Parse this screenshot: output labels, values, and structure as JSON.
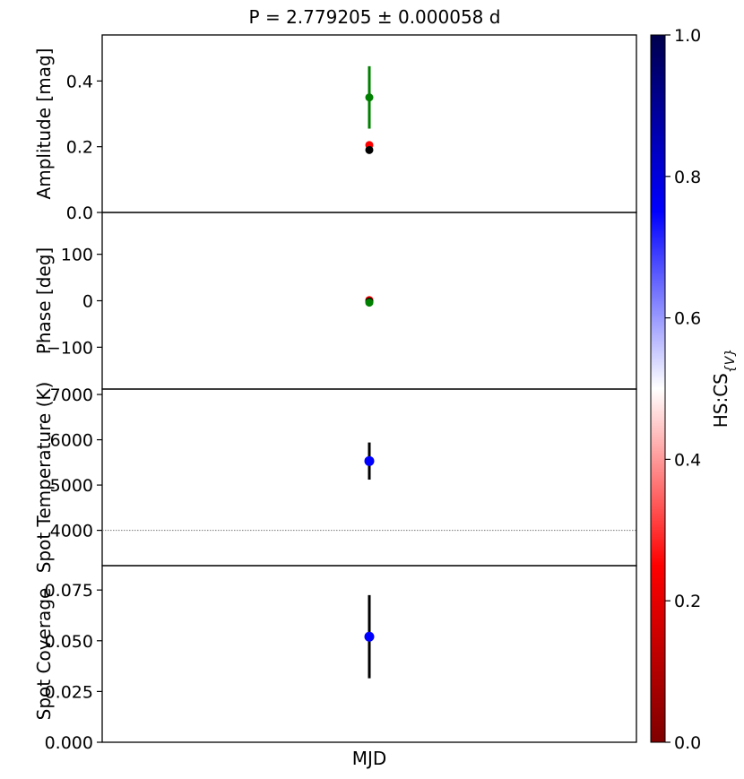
{
  "chart_data": {
    "type": "scatter",
    "title": "P = 2.779205 ± 0.000058 d",
    "xlabel": "MJD",
    "colorbar": {
      "label": "HS:CS{V}",
      "range": [
        0.0,
        1.0
      ],
      "ticks": [
        "0.0",
        "0.2",
        "0.4",
        "0.6",
        "0.8",
        "1.0"
      ],
      "colormap": [
        "#7f0000",
        "#ff0000",
        "#ffffff",
        "#0000ff",
        "#00004d"
      ]
    },
    "panels": [
      {
        "ylabel": "Amplitude [mag]",
        "ylim": [
          0.0,
          0.54
        ],
        "yticks": [
          {
            "value": 0.0,
            "label": "0.0"
          },
          {
            "value": 0.2,
            "label": "0.2"
          },
          {
            "value": 0.4,
            "label": "0.4"
          }
        ],
        "series": [
          {
            "color": "#008000",
            "y": 0.35,
            "err": 0.095
          },
          {
            "color": "#ff0000",
            "y": 0.205,
            "err": 0.012
          },
          {
            "color": "#000000",
            "y": 0.19,
            "err": 0.006
          }
        ]
      },
      {
        "ylabel": "Phase [deg]",
        "ylim": [
          -190,
          190
        ],
        "yticks": [
          {
            "value": 100,
            "label": "100"
          },
          {
            "value": 0,
            "label": "0"
          },
          {
            "value": -100,
            "label": "−100"
          }
        ],
        "series": [
          {
            "color": "#ff0000",
            "y": 1.5,
            "err": 0
          },
          {
            "color": "#000000",
            "y": -1.5,
            "err": 0
          },
          {
            "color": "#008000",
            "y": -4,
            "err": 0
          }
        ]
      },
      {
        "ylabel": "Spot Temperature (K)",
        "ylim": [
          3220,
          7120
        ],
        "reference_line": 4000,
        "yticks": [
          {
            "value": 7000,
            "label": "7000"
          },
          {
            "value": 6000,
            "label": "6000"
          },
          {
            "value": 5000,
            "label": "5000"
          },
          {
            "value": 4000,
            "label": "4000"
          }
        ],
        "series": [
          {
            "color": "#0000ff",
            "errcolor": "#000000",
            "y": 5530,
            "err": 410
          }
        ]
      },
      {
        "ylabel": "Spot Coverage",
        "ylim": [
          0.0,
          0.087
        ],
        "yticks": [
          {
            "value": 0.075,
            "label": "0.075"
          },
          {
            "value": 0.05,
            "label": "0.050"
          },
          {
            "value": 0.025,
            "label": "0.025"
          },
          {
            "value": 0.0,
            "label": "0.000"
          }
        ],
        "series": [
          {
            "color": "#0000ff",
            "errcolor": "#000000",
            "y": 0.052,
            "err": 0.0205
          }
        ]
      }
    ]
  }
}
